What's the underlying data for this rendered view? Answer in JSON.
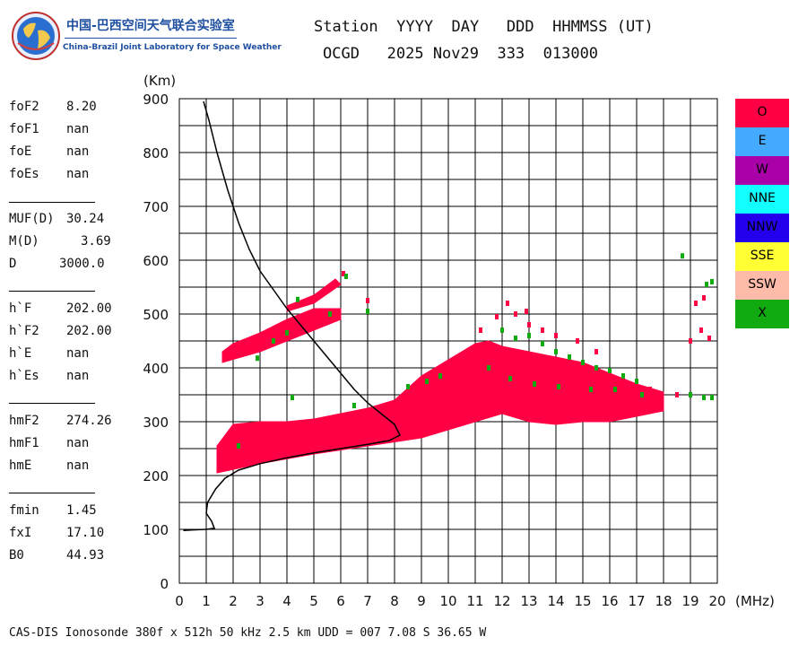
{
  "header": {
    "line1": "Station  YYYY  DAY   DDD  HHMMSS (UT)",
    "line2": "OCGD   2025 Nov29  333  013000"
  },
  "logo": {
    "cn_text": "中国-巴西空间天气联合实验室",
    "en_text": "China-Brazil Joint Laboratory for Space Weather"
  },
  "params": [
    {
      "label": "foF2",
      "value": "8.20"
    },
    {
      "label": "foF1",
      "value": "nan"
    },
    {
      "label": "foE",
      "value": "nan"
    },
    {
      "label": "foEs",
      "value": "nan"
    },
    {
      "label": "MUF(D)",
      "value": "30.24"
    },
    {
      "label": "M(D)",
      "value": "3.69"
    },
    {
      "label": "D",
      "value": "3000.0"
    },
    {
      "label": "h`F",
      "value": "202.00"
    },
    {
      "label": "h`F2",
      "value": "202.00"
    },
    {
      "label": "h`E",
      "value": "nan"
    },
    {
      "label": "h`Es",
      "value": "nan"
    },
    {
      "label": "hmF2",
      "value": "274.26"
    },
    {
      "label": "hmF1",
      "value": "nan"
    },
    {
      "label": "hmE",
      "value": "nan"
    },
    {
      "label": "fmin",
      "value": "1.45"
    },
    {
      "label": "fxI",
      "value": "17.10"
    },
    {
      "label": "B0",
      "value": "44.93"
    }
  ],
  "footer": "CAS-DIS Ionosonde 380f x 512h 50 kHz 2.5 km UDD = 007 7.08 S 36.65 W",
  "legend": [
    {
      "label": "O",
      "color": "#ff0044"
    },
    {
      "label": "E",
      "color": "#44aaff"
    },
    {
      "label": "W",
      "color": "#aa00aa"
    },
    {
      "label": "NNE",
      "color": "#11ffff"
    },
    {
      "label": "NNW",
      "color": "#2200ee"
    },
    {
      "label": "SSE",
      "color": "#ffff33"
    },
    {
      "label": "SSW",
      "color": "#ffbbaa"
    },
    {
      "label": "X",
      "color": "#11aa11"
    }
  ],
  "chart_data": {
    "type": "scatter",
    "xlabel": "(MHz)",
    "ylabel": "(Km)",
    "xlim": [
      0,
      20
    ],
    "ylim": [
      0,
      900
    ],
    "xticks": [
      0,
      1,
      2,
      3,
      4,
      5,
      6,
      7,
      8,
      9,
      10,
      11,
      12,
      13,
      14,
      15,
      16,
      17,
      18,
      19,
      20
    ],
    "yticks": [
      0,
      100,
      200,
      300,
      400,
      500,
      600,
      700,
      800,
      900
    ],
    "grid": true,
    "legend_position": "right",
    "profile_curve": [
      [
        0.15,
        98
      ],
      [
        0.5,
        99
      ],
      [
        1.0,
        100
      ],
      [
        1.3,
        102
      ],
      [
        1.2,
        115
      ],
      [
        1.0,
        130
      ],
      [
        1.05,
        150
      ],
      [
        1.35,
        175
      ],
      [
        1.7,
        195
      ],
      [
        2.2,
        210
      ],
      [
        3.0,
        222
      ],
      [
        4.0,
        233
      ],
      [
        5.0,
        242
      ],
      [
        6.0,
        250
      ],
      [
        7.0,
        258
      ],
      [
        7.8,
        265
      ],
      [
        8.2,
        275
      ],
      [
        8.0,
        295
      ],
      [
        7.5,
        315
      ],
      [
        7.0,
        335
      ],
      [
        6.5,
        360
      ],
      [
        6.0,
        390
      ],
      [
        5.5,
        420
      ],
      [
        5.0,
        450
      ],
      [
        4.5,
        480
      ],
      [
        4.0,
        510
      ],
      [
        3.5,
        545
      ],
      [
        3.0,
        580
      ],
      [
        2.6,
        620
      ],
      [
        2.2,
        670
      ],
      [
        1.8,
        730
      ],
      [
        1.4,
        800
      ],
      [
        1.1,
        860
      ],
      [
        0.9,
        895
      ]
    ],
    "o_trace_region": [
      [
        1.4,
        205
      ],
      [
        3.0,
        222
      ],
      [
        5.0,
        240
      ],
      [
        7.0,
        255
      ],
      [
        9.0,
        270
      ],
      [
        10.0,
        285
      ],
      [
        11.0,
        300
      ],
      [
        12.0,
        315
      ],
      [
        13.0,
        300
      ],
      [
        14.0,
        295
      ],
      [
        15.0,
        300
      ],
      [
        16.0,
        300
      ],
      [
        17.0,
        310
      ],
      [
        18.0,
        320
      ],
      [
        18.0,
        355
      ],
      [
        17.0,
        370
      ],
      [
        16.0,
        390
      ],
      [
        15.0,
        410
      ],
      [
        14.0,
        420
      ],
      [
        13.0,
        430
      ],
      [
        12.0,
        440
      ],
      [
        11.5,
        450
      ],
      [
        11.0,
        445
      ],
      [
        10.5,
        430
      ],
      [
        9.5,
        400
      ],
      [
        9.0,
        385
      ],
      [
        8.0,
        340
      ],
      [
        7.0,
        325
      ],
      [
        6.0,
        315
      ],
      [
        5.0,
        305
      ],
      [
        4.0,
        300
      ],
      [
        3.0,
        300
      ],
      [
        2.0,
        295
      ],
      [
        1.4,
        255
      ]
    ],
    "o_second_hop_region": [
      [
        1.6,
        410
      ],
      [
        3.0,
        430
      ],
      [
        4.0,
        450
      ],
      [
        5.0,
        470
      ],
      [
        6.0,
        490
      ],
      [
        6.0,
        510
      ],
      [
        5.0,
        510
      ],
      [
        4.0,
        490
      ],
      [
        3.0,
        465
      ],
      [
        2.0,
        445
      ],
      [
        1.6,
        430
      ]
    ],
    "o_second_hop_upper": [
      [
        4.0,
        505
      ],
      [
        5.0,
        520
      ],
      [
        6.0,
        555
      ],
      [
        5.8,
        565
      ],
      [
        5.0,
        535
      ],
      [
        4.0,
        515
      ]
    ],
    "scatter_o_extra": [
      [
        11.2,
        470
      ],
      [
        11.8,
        495
      ],
      [
        12.5,
        500
      ],
      [
        13.0,
        480
      ],
      [
        13.5,
        470
      ],
      [
        14.0,
        460
      ],
      [
        14.8,
        450
      ],
      [
        15.5,
        430
      ],
      [
        16.5,
        380
      ],
      [
        17.5,
        360
      ],
      [
        18.5,
        350
      ],
      [
        19.0,
        450
      ],
      [
        19.4,
        470
      ],
      [
        19.7,
        455
      ],
      [
        19.5,
        530
      ],
      [
        19.2,
        520
      ],
      [
        12.2,
        520
      ],
      [
        12.9,
        505
      ],
      [
        7.0,
        525
      ],
      [
        6.1,
        575
      ]
    ],
    "scatter_x": [
      [
        12.0,
        470
      ],
      [
        12.5,
        455
      ],
      [
        13.0,
        460
      ],
      [
        13.5,
        445
      ],
      [
        14.0,
        430
      ],
      [
        14.5,
        420
      ],
      [
        15.0,
        410
      ],
      [
        15.5,
        400
      ],
      [
        16.0,
        395
      ],
      [
        16.5,
        385
      ],
      [
        17.0,
        375
      ],
      [
        18.7,
        608
      ],
      [
        19.8,
        560
      ],
      [
        19.6,
        555
      ],
      [
        19.0,
        350
      ],
      [
        19.5,
        345
      ],
      [
        19.8,
        345
      ],
      [
        6.2,
        570
      ],
      [
        4.4,
        527
      ],
      [
        5.6,
        500
      ],
      [
        4.0,
        465
      ],
      [
        3.5,
        450
      ],
      [
        2.9,
        418
      ],
      [
        4.2,
        345
      ],
      [
        6.5,
        330
      ],
      [
        8.5,
        365
      ],
      [
        9.2,
        375
      ],
      [
        9.7,
        385
      ],
      [
        7.0,
        505
      ],
      [
        2.2,
        255
      ],
      [
        11.5,
        400
      ],
      [
        12.3,
        380
      ],
      [
        13.2,
        370
      ],
      [
        14.1,
        365
      ],
      [
        15.3,
        360
      ],
      [
        16.2,
        360
      ],
      [
        17.2,
        350
      ]
    ]
  }
}
